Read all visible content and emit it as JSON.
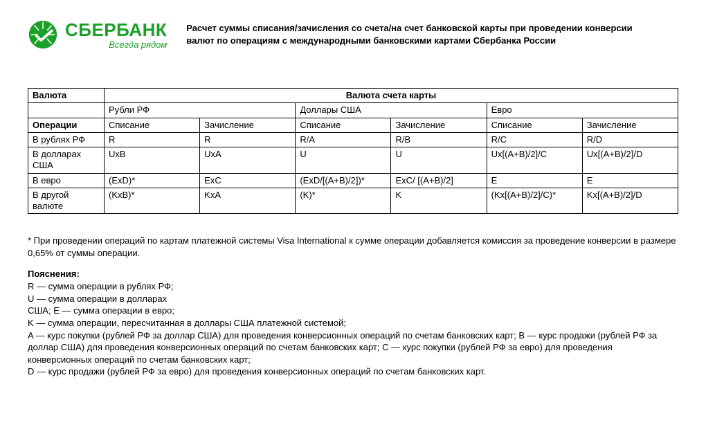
{
  "brand": {
    "name": "СБЕРБАНК",
    "slogan": "Всегда рядом",
    "brand_color": "#1a9f29"
  },
  "title": "Расчет суммы списания/зачисления со счета/на счет банковской карты при проведении конверсии валют по операциям с международными банковскими картами Сбербанка России",
  "table": {
    "head_currency": "Валюта",
    "head_card_currency": "Валюта счета карты",
    "sub_rub": "Рубли РФ",
    "sub_usd": "Доллары США",
    "sub_eur": "Евро",
    "head_ops": "Операции",
    "col_debit": "Списание",
    "col_credit": "Зачисление",
    "rows": [
      {
        "label": "В рублях РФ",
        "c": [
          "R",
          "R",
          "R/A",
          "R/B",
          "R/C",
          "R/D"
        ]
      },
      {
        "label": "В долларах США",
        "c": [
          "UxB",
          "UxA",
          "U",
          "U",
          "Ux[(A+B)/2]/C",
          "Ux[(A+B)/2]/D"
        ]
      },
      {
        "label": "В евро",
        "c": [
          "(ExD)*",
          "ExC",
          "(ExD/[(A+B)/2])*",
          "ExC/ [(A+B)/2]",
          "E",
          "E"
        ]
      },
      {
        "label": "В другой валюте",
        "c": [
          "(KxB)*",
          "KxA",
          "(K)*",
          "K",
          "(Kx[(A+B)/2]/C)*",
          "Kx[(A+B)/2]/D"
        ]
      }
    ]
  },
  "footnote": "* При проведении операций по картам платежной системы Visa International к сумме операции добавляется комиссия за проведение конверсии в размере 0,65% от суммы операции.",
  "legend_head": "Пояснения:",
  "legend_text": "R — сумма операции в рублях РФ;\nU — сумма операции в долларах\nСША; E — сумма операции в евро;\nK — сумма операции, пересчитанная в доллары США платежной системой;\nA — курс покупки (рублей РФ за доллар США) для проведения конверсионных операций по счетам банковских карт; B — курс продажи (рублей РФ за доллар США) для проведения конверсионных операций по счетам банковских карт; C — курс покупки (рублей РФ за евро) для проведения конверсионных операций по счетам банковских карт;\nD — курс продажи (рублей РФ за евро) для проведения конверсионных операций по счетам банковских карт."
}
